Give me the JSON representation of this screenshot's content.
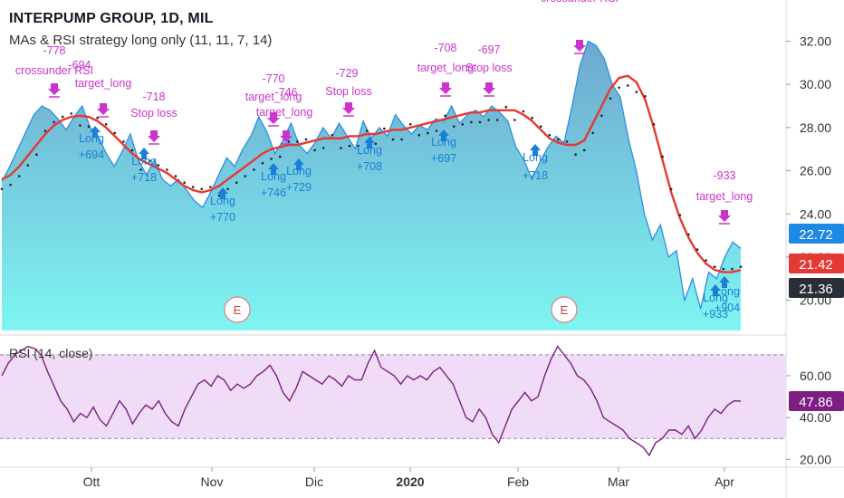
{
  "header": {
    "title": "INTERPUMP GROUP, 1D, MIL",
    "strategy": "MAs & RSI strategy long only (11, 11, 7, 14)"
  },
  "rsi_title": "RSI (14, close)",
  "colors": {
    "area_top": "#5aa9d6",
    "area_bottom": "#7ef5f2",
    "price_line": "#2f8fe0",
    "ma_red": "#e8382e",
    "ma_dots": "#222222",
    "signal_magenta": "#cc33cc",
    "signal_blue": "#1a7fd6",
    "rsi_line": "#7b1f82",
    "rsi_band": "#f0dcf7",
    "badge_blue": "#1e88e5",
    "badge_red": "#e53935",
    "badge_dark": "#2a2e39",
    "badge_purple": "#7b1f82"
  },
  "chart_data": {
    "type": "line",
    "x_labels": [
      "Ott",
      "Nov",
      "Dic",
      "2020",
      "Feb",
      "Mar",
      "Apr"
    ],
    "price_axis": {
      "ticks": [
        "32.00",
        "30.00",
        "28.00",
        "26.00",
        "24.00",
        "22.00",
        "20.00"
      ],
      "ylim": [
        18.6,
        33.7
      ]
    },
    "rsi_axis": {
      "ticks": [
        "60.00",
        "40.00",
        "20.00"
      ],
      "ylim": [
        18,
        76
      ],
      "band": [
        30,
        70
      ]
    },
    "price_badges": [
      {
        "value": "22.72",
        "style": "blue"
      },
      {
        "value": "21.42",
        "style": "red"
      },
      {
        "value": "21.36",
        "style": "dark"
      }
    ],
    "rsi_badge": {
      "value": "47.86"
    },
    "series": [
      {
        "name": "price",
        "values": [
          25.5,
          26.2,
          27.0,
          27.8,
          28.6,
          29.0,
          28.8,
          28.4,
          27.9,
          28.5,
          29.0,
          28.0,
          27.6,
          26.8,
          26.2,
          26.9,
          27.7,
          26.5,
          25.8,
          26.5,
          25.6,
          25.3,
          25.6,
          25.1,
          24.6,
          24.3,
          25.0,
          25.8,
          26.6,
          26.2,
          27.0,
          27.6,
          28.5,
          27.8,
          26.8,
          27.4,
          28.2,
          27.2,
          26.8,
          27.3,
          28.0,
          27.5,
          28.2,
          27.6,
          27.0,
          28.3,
          27.5,
          28.0,
          27.6,
          28.6,
          28.1,
          27.7,
          28.1,
          27.9,
          28.4,
          28.3,
          29.0,
          28.2,
          28.6,
          28.8,
          28.5,
          29.0,
          28.7,
          28.3,
          27.1,
          26.5,
          25.6,
          26.4,
          27.1,
          27.6,
          27.3,
          29.0,
          30.9,
          32.0,
          31.8,
          31.2,
          30.0,
          29.4,
          27.5,
          26.0,
          24.0,
          22.8,
          23.5,
          22.0,
          22.3,
          20.0,
          21.0,
          19.6,
          21.3,
          21.0,
          22.0,
          22.7,
          22.4
        ]
      },
      {
        "name": "ma_red",
        "values": [
          25.6,
          25.8,
          26.2,
          26.7,
          27.2,
          27.7,
          28.1,
          28.35,
          28.5,
          28.55,
          28.5,
          28.3,
          28.0,
          27.6,
          27.2,
          26.8,
          26.5,
          26.3,
          26.1,
          25.9,
          25.6,
          25.3,
          25.1,
          25.0,
          25.1,
          25.3,
          25.6,
          25.9,
          26.2,
          26.5,
          26.8,
          27.0,
          27.1,
          27.2,
          27.2,
          27.3,
          27.4,
          27.5,
          27.5,
          27.5,
          27.6,
          27.6,
          27.7,
          27.7,
          27.8,
          27.9,
          27.9,
          28.0,
          28.1,
          28.2,
          28.3,
          28.4,
          28.5,
          28.6,
          28.7,
          28.7,
          28.8,
          28.8,
          28.8,
          28.8,
          28.6,
          28.3,
          27.9,
          27.5,
          27.3,
          27.2,
          27.2,
          27.4,
          28.2,
          29.0,
          29.8,
          30.3,
          30.4,
          30.1,
          29.3,
          28.0,
          26.5,
          25.0,
          23.8,
          22.9,
          22.2,
          21.7,
          21.4,
          21.3,
          21.3,
          21.4
        ]
      }
    ],
    "rsi_values": [
      60,
      66,
      70,
      72,
      74,
      73,
      70,
      62,
      55,
      48,
      44,
      38,
      42,
      40,
      45,
      39,
      36,
      42,
      48,
      44,
      37,
      42,
      46,
      44,
      48,
      42,
      38,
      36,
      44,
      50,
      56,
      58,
      55,
      60,
      58,
      53,
      56,
      54,
      56,
      60,
      62,
      65,
      60,
      52,
      48,
      54,
      62,
      60,
      58,
      56,
      60,
      58,
      55,
      60,
      58,
      58,
      66,
      72,
      64,
      62,
      60,
      56,
      60,
      58,
      60,
      58,
      62,
      64,
      60,
      56,
      48,
      40,
      38,
      44,
      40,
      32,
      28,
      36,
      44,
      48,
      52,
      48,
      50,
      60,
      68,
      74,
      70,
      66,
      60,
      58,
      54,
      48,
      40,
      38,
      36,
      34,
      30,
      28,
      26,
      22,
      28,
      30,
      34,
      34,
      32,
      36,
      30,
      34,
      40,
      44,
      42,
      46,
      48,
      47.86
    ]
  },
  "markers": [
    {
      "text": "crossunder RSI",
      "side": "top",
      "color": "magenta"
    },
    {
      "text": "-778",
      "side": "top",
      "color": "magenta"
    },
    {
      "text": "-694",
      "side": "top",
      "color": "magenta"
    },
    {
      "text": "target_long",
      "side": "top",
      "color": "magenta"
    },
    {
      "text": "-718",
      "side": "top",
      "color": "magenta"
    },
    {
      "text": "Stop loss",
      "side": "top",
      "color": "magenta"
    },
    {
      "text": "-770",
      "side": "top",
      "color": "magenta"
    },
    {
      "text": "target_long",
      "side": "top",
      "color": "magenta"
    },
    {
      "text": "-746",
      "side": "top",
      "color": "magenta"
    },
    {
      "text": "target_long",
      "side": "top",
      "color": "magenta"
    },
    {
      "text": "-729",
      "side": "top",
      "color": "magenta"
    },
    {
      "text": "Stop loss",
      "side": "top",
      "color": "magenta"
    },
    {
      "text": "-708",
      "side": "top",
      "color": "magenta"
    },
    {
      "text": "target_long",
      "side": "top",
      "color": "magenta"
    },
    {
      "text": "-697",
      "side": "top",
      "color": "magenta"
    },
    {
      "text": "Stop loss",
      "side": "top",
      "color": "magenta"
    },
    {
      "text": "crossunder RSI",
      "side": "top",
      "color": "magenta"
    },
    {
      "text": "-933",
      "side": "top",
      "color": "magenta"
    },
    {
      "text": "target_long",
      "side": "top",
      "color": "magenta"
    },
    {
      "text": "Long",
      "side": "bottom",
      "color": "blue"
    },
    {
      "text": "+694",
      "side": "bottom",
      "color": "blue"
    },
    {
      "text": "Long",
      "side": "bottom",
      "color": "blue"
    },
    {
      "text": "+718",
      "side": "bottom",
      "color": "blue"
    },
    {
      "text": "Long",
      "side": "bottom",
      "color": "blue"
    },
    {
      "text": "+770",
      "side": "bottom",
      "color": "blue"
    },
    {
      "text": "Long",
      "side": "bottom",
      "color": "blue"
    },
    {
      "text": "+746",
      "side": "bottom",
      "color": "blue"
    },
    {
      "text": "Long",
      "side": "bottom",
      "color": "blue"
    },
    {
      "text": "+729",
      "side": "bottom",
      "color": "blue"
    },
    {
      "text": "Long",
      "side": "bottom",
      "color": "blue"
    },
    {
      "text": "+708",
      "side": "bottom",
      "color": "blue"
    },
    {
      "text": "Long",
      "side": "bottom",
      "color": "blue"
    },
    {
      "text": "+697",
      "side": "bottom",
      "color": "blue"
    },
    {
      "text": "Long",
      "side": "bottom",
      "color": "blue"
    },
    {
      "text": "+718",
      "side": "bottom",
      "color": "blue"
    },
    {
      "text": "Long",
      "side": "bottom",
      "color": "blue"
    },
    {
      "text": "+933",
      "side": "bottom",
      "color": "blue"
    },
    {
      "text": "Long",
      "side": "bottom",
      "color": "blue"
    },
    {
      "text": "+904",
      "side": "bottom",
      "color": "blue"
    }
  ],
  "earnings_labels": [
    "E",
    "E"
  ]
}
